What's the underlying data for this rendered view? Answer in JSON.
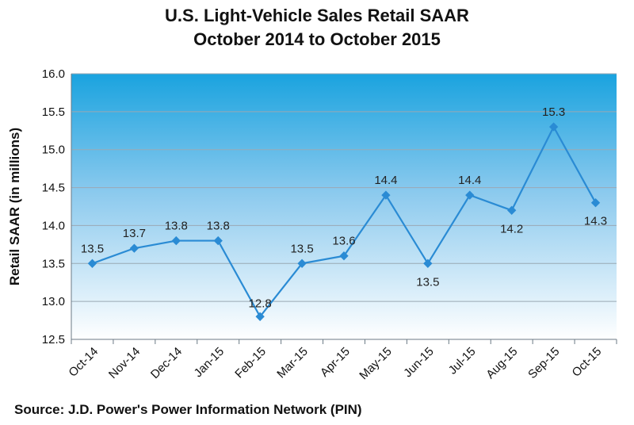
{
  "chart_data": {
    "type": "line",
    "title": "U.S. Light-Vehicle Sales Retail SAAR",
    "subtitle": "October 2014 to October 2015",
    "xlabel": "",
    "ylabel": "Retail SAAR (in millions)",
    "ylim": [
      12.5,
      16.0
    ],
    "yticks": [
      "12.5",
      "13.0",
      "13.5",
      "14.0",
      "14.5",
      "15.0",
      "15.5",
      "16.0"
    ],
    "grid": true,
    "categories": [
      "Oct-14",
      "Nov-14",
      "Dec-14",
      "Jan-15",
      "Feb-15",
      "Mar-15",
      "Apr-15",
      "May-15",
      "Jun-15",
      "Jul-15",
      "Aug-15",
      "Sep-15",
      "Oct-15"
    ],
    "series": [
      {
        "values": [
          13.5,
          13.7,
          13.8,
          13.8,
          12.8,
          13.5,
          13.6,
          14.4,
          13.5,
          14.4,
          14.2,
          15.3,
          14.3
        ],
        "labels": [
          "13.5",
          "13.7",
          "13.8",
          "13.8",
          "12.8",
          "13.5",
          "13.6",
          "14.4",
          "13.5",
          "14.4",
          "14.2",
          "15.3",
          "14.3"
        ],
        "color": "#2a8bd4"
      }
    ],
    "source": "Source: J.D. Power's Power Information Network (PIN)"
  }
}
